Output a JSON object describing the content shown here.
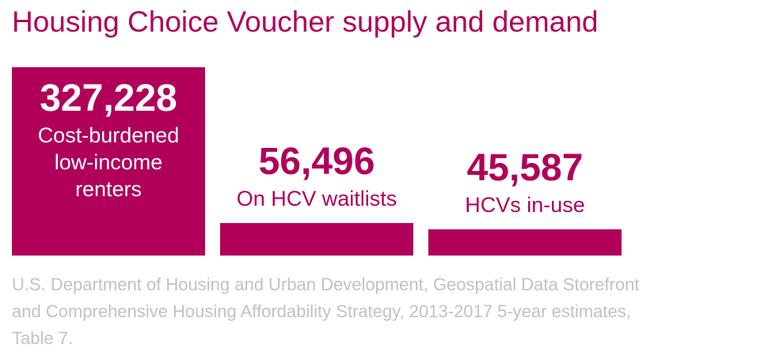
{
  "chart_data": {
    "type": "bar",
    "title": "Housing Choice Voucher supply and demand",
    "categories": [
      "Cost-burdened low-income renters",
      "On HCV waitlists",
      "HCVs in-use"
    ],
    "label_lines": [
      [
        "Cost-burdened",
        "low-income",
        "renters"
      ],
      [
        "On HCV waitlists"
      ],
      [
        "HCVs in-use"
      ]
    ],
    "values": [
      327228,
      56496,
      45587
    ],
    "value_labels": [
      "327,228",
      "56,496",
      "45,587"
    ],
    "xlabel": "",
    "ylabel": "",
    "ylim": [
      0,
      327228
    ],
    "grid": false,
    "legend": "none"
  },
  "colors": {
    "bar": "#b0005a",
    "label_inside": "#ffffff",
    "label_outside": "#b0005a",
    "source_text": "#c2c2c2"
  },
  "source": "U.S. Department of Housing and Urban Development, Geospatial Data Storefront and Comprehensive Housing Affordability Strategy, 2013-2017 5-year estimates, Table 7."
}
